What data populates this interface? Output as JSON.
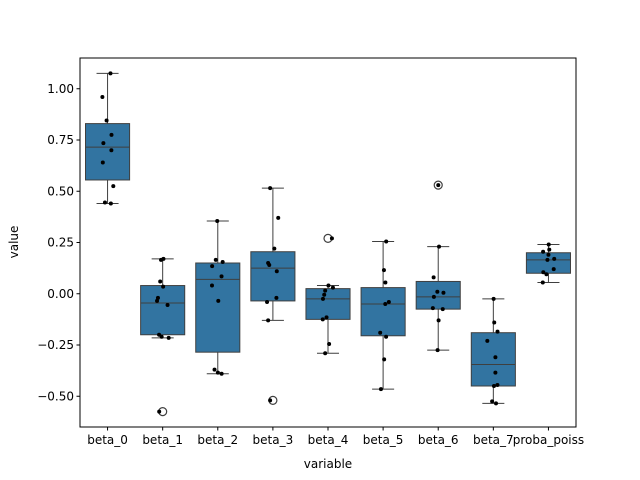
{
  "chart_data": {
    "type": "box",
    "xlabel": "variable",
    "ylabel": "value",
    "ylim": [
      -0.65,
      1.15
    ],
    "yticks": [
      "−0.50",
      "−0.25",
      "0.00",
      "0.25",
      "0.50",
      "0.75",
      "1.00"
    ],
    "ytick_values": [
      -0.5,
      -0.25,
      0.0,
      0.25,
      0.5,
      0.75,
      1.0
    ],
    "categories": [
      "beta_0",
      "beta_1",
      "beta_2",
      "beta_3",
      "beta_4",
      "beta_5",
      "beta_6",
      "beta_7",
      "proba_poiss"
    ],
    "box_color": "#3274a1",
    "boxes": [
      {
        "q1": 0.555,
        "median": 0.715,
        "q3": 0.83,
        "whisker_low": 0.44,
        "whisker_high": 1.075,
        "outliers": []
      },
      {
        "q1": -0.2,
        "median": -0.045,
        "q3": 0.04,
        "whisker_low": -0.215,
        "whisker_high": 0.17,
        "outliers": [
          -0.575
        ]
      },
      {
        "q1": -0.285,
        "median": 0.07,
        "q3": 0.15,
        "whisker_low": -0.39,
        "whisker_high": 0.355,
        "outliers": []
      },
      {
        "q1": -0.035,
        "median": 0.125,
        "q3": 0.205,
        "whisker_low": -0.13,
        "whisker_high": 0.515,
        "outliers": [
          -0.52
        ]
      },
      {
        "q1": -0.125,
        "median": -0.025,
        "q3": 0.025,
        "whisker_low": -0.29,
        "whisker_high": 0.04,
        "outliers": [
          0.27
        ]
      },
      {
        "q1": -0.205,
        "median": -0.05,
        "q3": 0.03,
        "whisker_low": -0.465,
        "whisker_high": 0.255,
        "outliers": []
      },
      {
        "q1": -0.075,
        "median": -0.015,
        "q3": 0.06,
        "whisker_low": -0.275,
        "whisker_high": 0.23,
        "outliers": [
          0.53
        ]
      },
      {
        "q1": -0.45,
        "median": -0.345,
        "q3": -0.19,
        "whisker_low": -0.535,
        "whisker_high": -0.025,
        "outliers": []
      },
      {
        "q1": 0.1,
        "median": 0.165,
        "q3": 0.2,
        "whisker_low": 0.055,
        "whisker_high": 0.24,
        "outliers": []
      }
    ],
    "points": [
      [
        1.075,
        0.96,
        0.845,
        0.775,
        0.735,
        0.7,
        0.64,
        0.525,
        0.445,
        0.44
      ],
      [
        0.17,
        0.165,
        0.06,
        0.035,
        -0.02,
        -0.035,
        -0.055,
        -0.2,
        -0.21,
        -0.215,
        -0.575
      ],
      [
        0.355,
        0.165,
        0.155,
        0.135,
        0.085,
        0.04,
        -0.035,
        -0.37,
        -0.385,
        -0.39
      ],
      [
        0.515,
        0.37,
        0.22,
        0.15,
        0.14,
        0.11,
        -0.02,
        -0.04,
        -0.13,
        -0.52
      ],
      [
        0.27,
        0.04,
        0.03,
        0.015,
        -0.005,
        -0.025,
        -0.115,
        -0.125,
        -0.245,
        -0.29
      ],
      [
        0.255,
        0.115,
        0.055,
        -0.04,
        -0.05,
        -0.19,
        -0.21,
        -0.32,
        -0.465
      ],
      [
        0.53,
        0.23,
        0.08,
        0.01,
        0.005,
        -0.015,
        -0.07,
        -0.075,
        -0.13,
        -0.275
      ],
      [
        -0.025,
        -0.14,
        -0.185,
        -0.23,
        -0.31,
        -0.385,
        -0.445,
        -0.45,
        -0.525,
        -0.535
      ],
      [
        0.24,
        0.215,
        0.205,
        0.19,
        0.17,
        0.165,
        0.12,
        0.105,
        0.095,
        0.055
      ]
    ]
  }
}
